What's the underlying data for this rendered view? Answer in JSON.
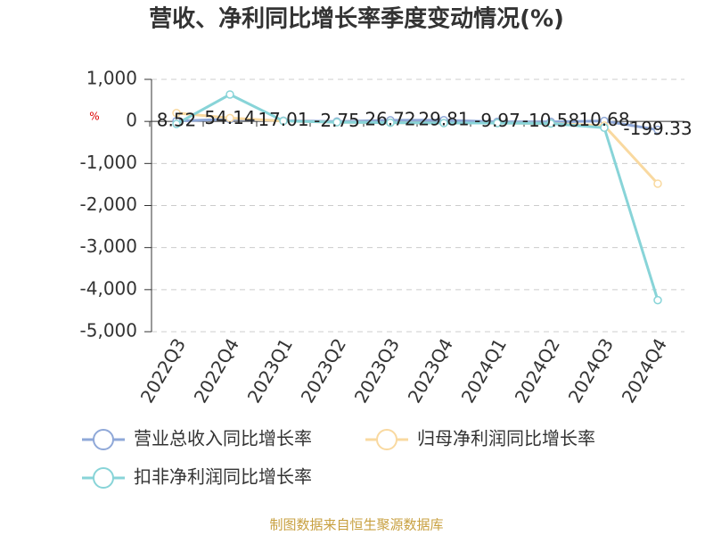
{
  "chart_data": {
    "type": "line",
    "title": "营收、净利同比增长率季度变动情况(%)",
    "y_label": "%",
    "source": "制图数据来自恒生聚源数据库",
    "categories": [
      "2022Q3",
      "2022Q4",
      "2023Q1",
      "2023Q2",
      "2023Q3",
      "2023Q4",
      "2024Q1",
      "2024Q2",
      "2024Q3",
      "2024Q4"
    ],
    "series": [
      {
        "name": "营业总收入同比增长率",
        "color": "#8fa8d8",
        "values": [
          8.52,
          54.14,
          17.01,
          -2.75,
          26.72,
          29.81,
          -9.97,
          -10.58,
          10.68,
          -199.33
        ],
        "show_labels": true
      },
      {
        "name": "归母净利润同比增长率",
        "color": "#f9d9a0",
        "values": [
          200,
          80,
          10,
          -20,
          -30,
          -40,
          -40,
          -50,
          -100,
          -1480
        ],
        "show_labels": false
      },
      {
        "name": "扣非净利润同比增长率",
        "color": "#88d4d8",
        "values": [
          -60,
          640,
          10,
          -20,
          -30,
          -40,
          -40,
          -50,
          -150,
          -4250
        ],
        "show_labels": false
      }
    ],
    "ylim": [
      -5000,
      1000
    ],
    "yticks": [
      {
        "value": 1000,
        "label": "1,000"
      },
      0,
      {
        "value": -1000,
        "label": "-1,000"
      },
      {
        "value": -2000,
        "label": "-2,000"
      },
      {
        "value": -3000,
        "label": "-3,000"
      },
      {
        "value": -4000,
        "label": "-4,000"
      },
      {
        "value": -5000,
        "label": "-5,000"
      }
    ],
    "grid": true
  }
}
